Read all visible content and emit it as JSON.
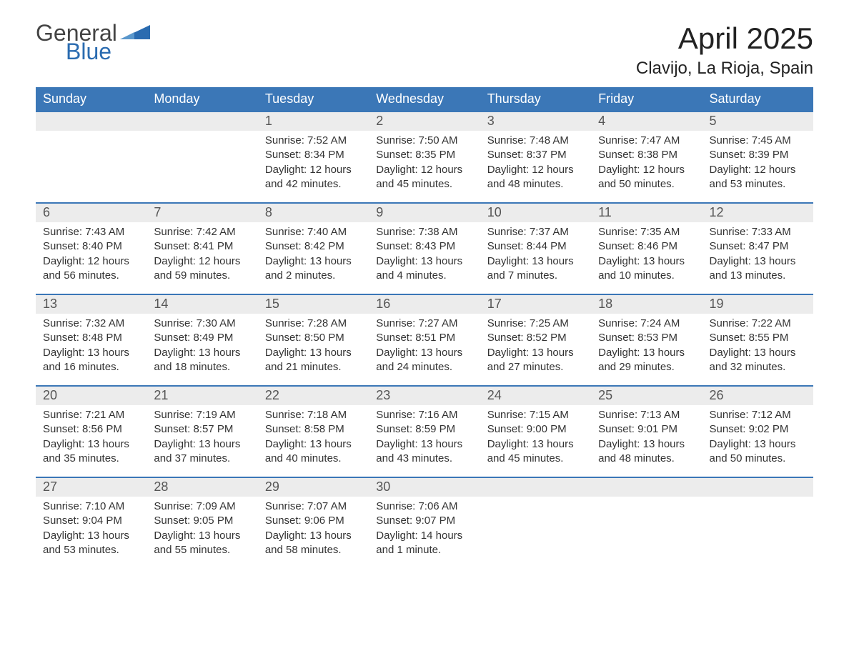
{
  "logo": {
    "word1": "General",
    "word2": "Blue"
  },
  "title": "April 2025",
  "location": "Clavijo, La Rioja, Spain",
  "colors": {
    "header_bg": "#3b77b7",
    "header_text": "#ffffff",
    "daynum_bg": "#ececec",
    "daynum_text": "#555555",
    "border": "#3b77b7",
    "body_text": "#333333",
    "logo_gray": "#444444",
    "logo_blue": "#2a6bb0"
  },
  "weekdays": [
    "Sunday",
    "Monday",
    "Tuesday",
    "Wednesday",
    "Thursday",
    "Friday",
    "Saturday"
  ],
  "weeks": [
    [
      {
        "day": "",
        "sunrise": "",
        "sunset": "",
        "daylight": ""
      },
      {
        "day": "",
        "sunrise": "",
        "sunset": "",
        "daylight": ""
      },
      {
        "day": "1",
        "sunrise": "Sunrise: 7:52 AM",
        "sunset": "Sunset: 8:34 PM",
        "daylight": "Daylight: 12 hours and 42 minutes."
      },
      {
        "day": "2",
        "sunrise": "Sunrise: 7:50 AM",
        "sunset": "Sunset: 8:35 PM",
        "daylight": "Daylight: 12 hours and 45 minutes."
      },
      {
        "day": "3",
        "sunrise": "Sunrise: 7:48 AM",
        "sunset": "Sunset: 8:37 PM",
        "daylight": "Daylight: 12 hours and 48 minutes."
      },
      {
        "day": "4",
        "sunrise": "Sunrise: 7:47 AM",
        "sunset": "Sunset: 8:38 PM",
        "daylight": "Daylight: 12 hours and 50 minutes."
      },
      {
        "day": "5",
        "sunrise": "Sunrise: 7:45 AM",
        "sunset": "Sunset: 8:39 PM",
        "daylight": "Daylight: 12 hours and 53 minutes."
      }
    ],
    [
      {
        "day": "6",
        "sunrise": "Sunrise: 7:43 AM",
        "sunset": "Sunset: 8:40 PM",
        "daylight": "Daylight: 12 hours and 56 minutes."
      },
      {
        "day": "7",
        "sunrise": "Sunrise: 7:42 AM",
        "sunset": "Sunset: 8:41 PM",
        "daylight": "Daylight: 12 hours and 59 minutes."
      },
      {
        "day": "8",
        "sunrise": "Sunrise: 7:40 AM",
        "sunset": "Sunset: 8:42 PM",
        "daylight": "Daylight: 13 hours and 2 minutes."
      },
      {
        "day": "9",
        "sunrise": "Sunrise: 7:38 AM",
        "sunset": "Sunset: 8:43 PM",
        "daylight": "Daylight: 13 hours and 4 minutes."
      },
      {
        "day": "10",
        "sunrise": "Sunrise: 7:37 AM",
        "sunset": "Sunset: 8:44 PM",
        "daylight": "Daylight: 13 hours and 7 minutes."
      },
      {
        "day": "11",
        "sunrise": "Sunrise: 7:35 AM",
        "sunset": "Sunset: 8:46 PM",
        "daylight": "Daylight: 13 hours and 10 minutes."
      },
      {
        "day": "12",
        "sunrise": "Sunrise: 7:33 AM",
        "sunset": "Sunset: 8:47 PM",
        "daylight": "Daylight: 13 hours and 13 minutes."
      }
    ],
    [
      {
        "day": "13",
        "sunrise": "Sunrise: 7:32 AM",
        "sunset": "Sunset: 8:48 PM",
        "daylight": "Daylight: 13 hours and 16 minutes."
      },
      {
        "day": "14",
        "sunrise": "Sunrise: 7:30 AM",
        "sunset": "Sunset: 8:49 PM",
        "daylight": "Daylight: 13 hours and 18 minutes."
      },
      {
        "day": "15",
        "sunrise": "Sunrise: 7:28 AM",
        "sunset": "Sunset: 8:50 PM",
        "daylight": "Daylight: 13 hours and 21 minutes."
      },
      {
        "day": "16",
        "sunrise": "Sunrise: 7:27 AM",
        "sunset": "Sunset: 8:51 PM",
        "daylight": "Daylight: 13 hours and 24 minutes."
      },
      {
        "day": "17",
        "sunrise": "Sunrise: 7:25 AM",
        "sunset": "Sunset: 8:52 PM",
        "daylight": "Daylight: 13 hours and 27 minutes."
      },
      {
        "day": "18",
        "sunrise": "Sunrise: 7:24 AM",
        "sunset": "Sunset: 8:53 PM",
        "daylight": "Daylight: 13 hours and 29 minutes."
      },
      {
        "day": "19",
        "sunrise": "Sunrise: 7:22 AM",
        "sunset": "Sunset: 8:55 PM",
        "daylight": "Daylight: 13 hours and 32 minutes."
      }
    ],
    [
      {
        "day": "20",
        "sunrise": "Sunrise: 7:21 AM",
        "sunset": "Sunset: 8:56 PM",
        "daylight": "Daylight: 13 hours and 35 minutes."
      },
      {
        "day": "21",
        "sunrise": "Sunrise: 7:19 AM",
        "sunset": "Sunset: 8:57 PM",
        "daylight": "Daylight: 13 hours and 37 minutes."
      },
      {
        "day": "22",
        "sunrise": "Sunrise: 7:18 AM",
        "sunset": "Sunset: 8:58 PM",
        "daylight": "Daylight: 13 hours and 40 minutes."
      },
      {
        "day": "23",
        "sunrise": "Sunrise: 7:16 AM",
        "sunset": "Sunset: 8:59 PM",
        "daylight": "Daylight: 13 hours and 43 minutes."
      },
      {
        "day": "24",
        "sunrise": "Sunrise: 7:15 AM",
        "sunset": "Sunset: 9:00 PM",
        "daylight": "Daylight: 13 hours and 45 minutes."
      },
      {
        "day": "25",
        "sunrise": "Sunrise: 7:13 AM",
        "sunset": "Sunset: 9:01 PM",
        "daylight": "Daylight: 13 hours and 48 minutes."
      },
      {
        "day": "26",
        "sunrise": "Sunrise: 7:12 AM",
        "sunset": "Sunset: 9:02 PM",
        "daylight": "Daylight: 13 hours and 50 minutes."
      }
    ],
    [
      {
        "day": "27",
        "sunrise": "Sunrise: 7:10 AM",
        "sunset": "Sunset: 9:04 PM",
        "daylight": "Daylight: 13 hours and 53 minutes."
      },
      {
        "day": "28",
        "sunrise": "Sunrise: 7:09 AM",
        "sunset": "Sunset: 9:05 PM",
        "daylight": "Daylight: 13 hours and 55 minutes."
      },
      {
        "day": "29",
        "sunrise": "Sunrise: 7:07 AM",
        "sunset": "Sunset: 9:06 PM",
        "daylight": "Daylight: 13 hours and 58 minutes."
      },
      {
        "day": "30",
        "sunrise": "Sunrise: 7:06 AM",
        "sunset": "Sunset: 9:07 PM",
        "daylight": "Daylight: 14 hours and 1 minute."
      },
      {
        "day": "",
        "sunrise": "",
        "sunset": "",
        "daylight": ""
      },
      {
        "day": "",
        "sunrise": "",
        "sunset": "",
        "daylight": ""
      },
      {
        "day": "",
        "sunrise": "",
        "sunset": "",
        "daylight": ""
      }
    ]
  ]
}
